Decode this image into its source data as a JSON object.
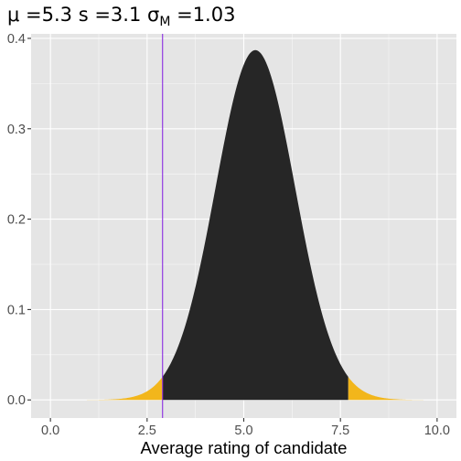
{
  "chart_data": {
    "type": "area",
    "title": {
      "mu_symbol": "μ",
      "mu_text": " =5.3 s =3.1 ",
      "sigma_symbol": "σ",
      "sigma_subscript": "M",
      "sigma_text": " =1.03"
    },
    "xlabel": "Average rating of candidate",
    "ylabel": "",
    "xlim": [
      -0.5,
      10.5
    ],
    "ylim": [
      -0.02,
      0.405
    ],
    "x_ticks": [
      0,
      2.5,
      5,
      7.5,
      10
    ],
    "x_tick_labels": [
      "0.0",
      "2.5",
      "5.0",
      "7.5",
      "10.0"
    ],
    "y_ticks": [
      0,
      0.1,
      0.2,
      0.3,
      0.4
    ],
    "y_tick_labels": [
      "0.0",
      "0.1",
      "0.2",
      "0.3",
      "0.4"
    ],
    "grid": true,
    "distribution": {
      "kind": "normal density",
      "mean": 5.3,
      "sd": 1.03,
      "x_range": [
        0,
        10
      ],
      "peak_density": 0.387
    },
    "tail_regions": [
      {
        "from": 0,
        "to": 2.9
      },
      {
        "from": 7.7,
        "to": 10
      }
    ],
    "reference_line_x": 2.9,
    "colors": {
      "panel_background": "#E5E5E5",
      "grid_major": "#FFFFFF",
      "center_fill": "#262626",
      "tail_fill": "#F2B61B",
      "reference_line": "#8A2BE2"
    }
  }
}
